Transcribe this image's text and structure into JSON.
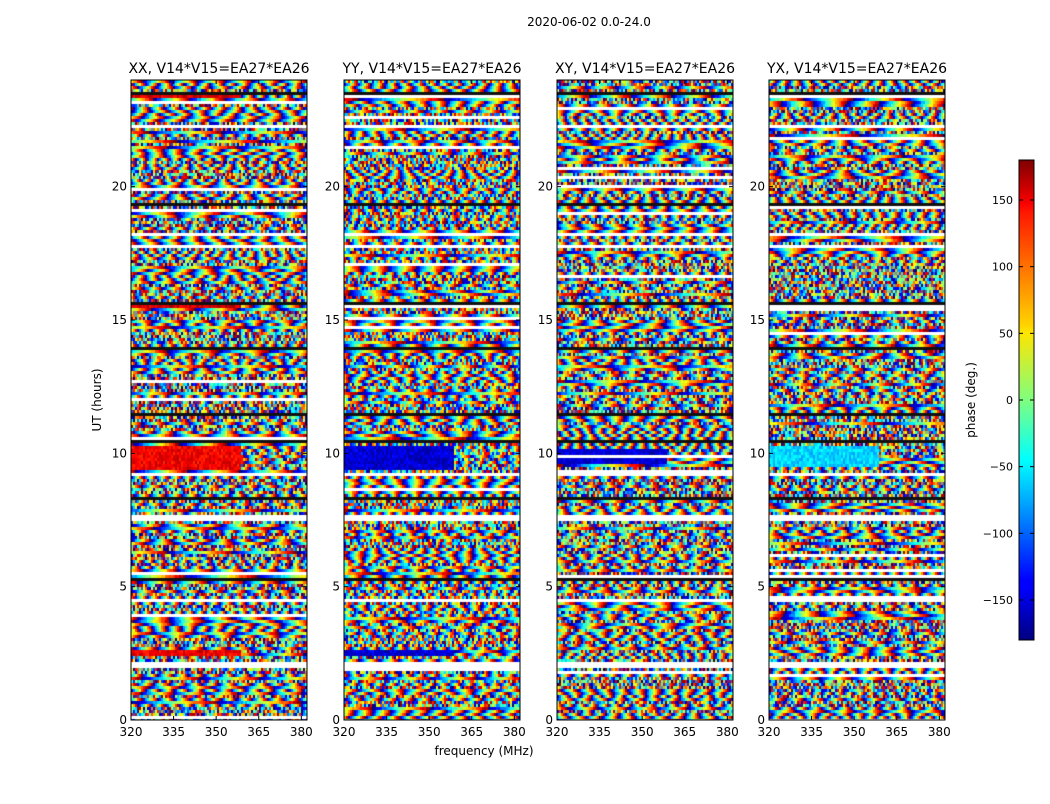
{
  "figure": {
    "suptitle": "2020-06-02 0.0-24.0"
  },
  "chart_data": {
    "type": "heatmap",
    "subtype": "waterfall phase plot",
    "xlabel": "frequency (MHz)",
    "ylabel": "UT (hours)",
    "xlim": [
      320,
      382
    ],
    "ylim": [
      0,
      24
    ],
    "xticks": [
      320,
      335,
      350,
      365,
      380
    ],
    "yticks": [
      0,
      5,
      10,
      15,
      20
    ],
    "panels": [
      {
        "title": "XX, V14*V15=EA27*EA26",
        "pol": "XX"
      },
      {
        "title": "YY, V14*V15=EA27*EA26",
        "pol": "YY"
      },
      {
        "title": "XY, V14*V15=EA27*EA26",
        "pol": "XY"
      },
      {
        "title": "YX, V14*V15=EA27*EA26",
        "pol": "YX"
      }
    ],
    "colorbar": {
      "label": "phase (deg.)",
      "range": [
        -180,
        180
      ],
      "ticks": [
        -150,
        -100,
        -50,
        0,
        50,
        100,
        150
      ],
      "colormap": "jet"
    },
    "notable_features": {
      "flagged_gaps_hours": [
        2.1,
        4.5,
        7.6,
        9.25,
        17.8,
        18.2,
        22.3
      ],
      "dark_bands_hours": [
        0.95,
        5.25,
        8.3,
        10.45,
        11.45,
        13.9,
        15.6,
        19.4,
        23.5
      ],
      "XX": {
        "uniform_regions": [
          {
            "t0": 9.35,
            "t1": 10.35,
            "phase": 140
          },
          {
            "t0": 2.4,
            "t1": 2.6,
            "phase": 140
          },
          {
            "t0": 13.85,
            "t1": 14.0,
            "phase": 140
          },
          {
            "t0": 15.5,
            "t1": 15.7,
            "phase": 150
          },
          {
            "t0": 23.3,
            "t1": 23.5,
            "phase": 150
          }
        ]
      },
      "YY": {
        "uniform_regions": [
          {
            "t0": 9.35,
            "t1": 10.35,
            "phase": -150
          },
          {
            "t0": 2.4,
            "t1": 2.6,
            "phase": -150
          },
          {
            "t0": 19.3,
            "t1": 19.45,
            "phase": -150
          }
        ]
      },
      "XY": {
        "uniform_regions": [
          {
            "t0": 9.6,
            "t1": 10.2,
            "phase": -150
          }
        ]
      },
      "YX": {
        "uniform_regions": [
          {
            "t0": 9.5,
            "t1": 10.3,
            "phase": -60
          }
        ]
      }
    }
  }
}
